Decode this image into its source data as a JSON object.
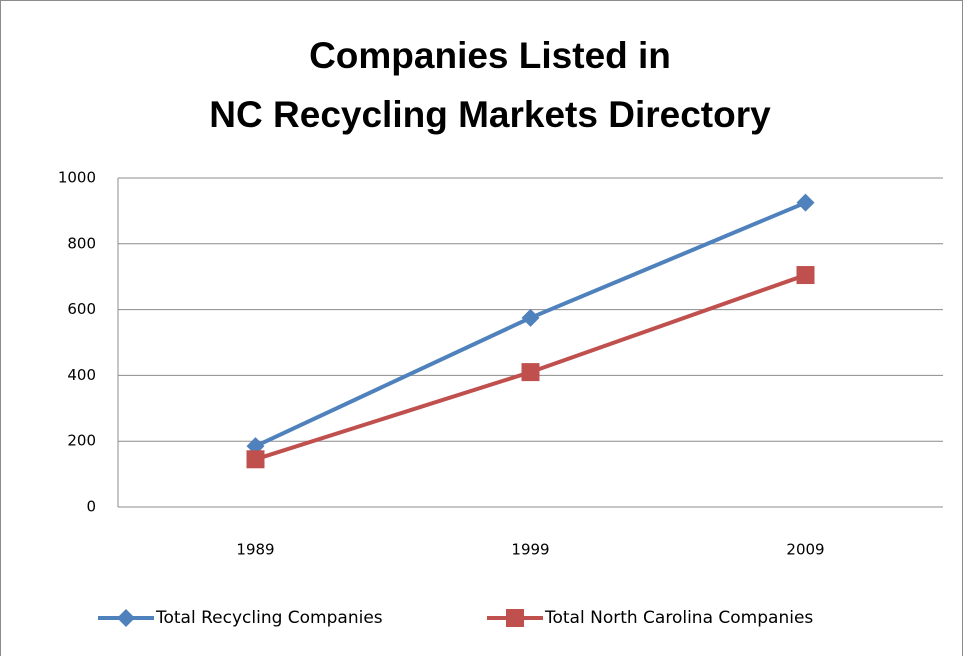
{
  "chart_data": {
    "type": "line",
    "title": [
      "Companies Listed in",
      "NC Recycling Markets Directory"
    ],
    "categories": [
      "1989",
      "1999",
      "2009"
    ],
    "series": [
      {
        "name": "Total Recycling Companies",
        "color": "#4f81bd",
        "marker": "diamond",
        "values": [
          185,
          575,
          925
        ]
      },
      {
        "name": "Total North Carolina Companies",
        "color": "#c0504d",
        "marker": "square",
        "values": [
          145,
          410,
          705
        ]
      }
    ],
    "ylim": [
      0,
      1000
    ],
    "yticks": [
      0,
      200,
      400,
      600,
      800,
      1000
    ],
    "grid": true,
    "legend": "bottom"
  }
}
